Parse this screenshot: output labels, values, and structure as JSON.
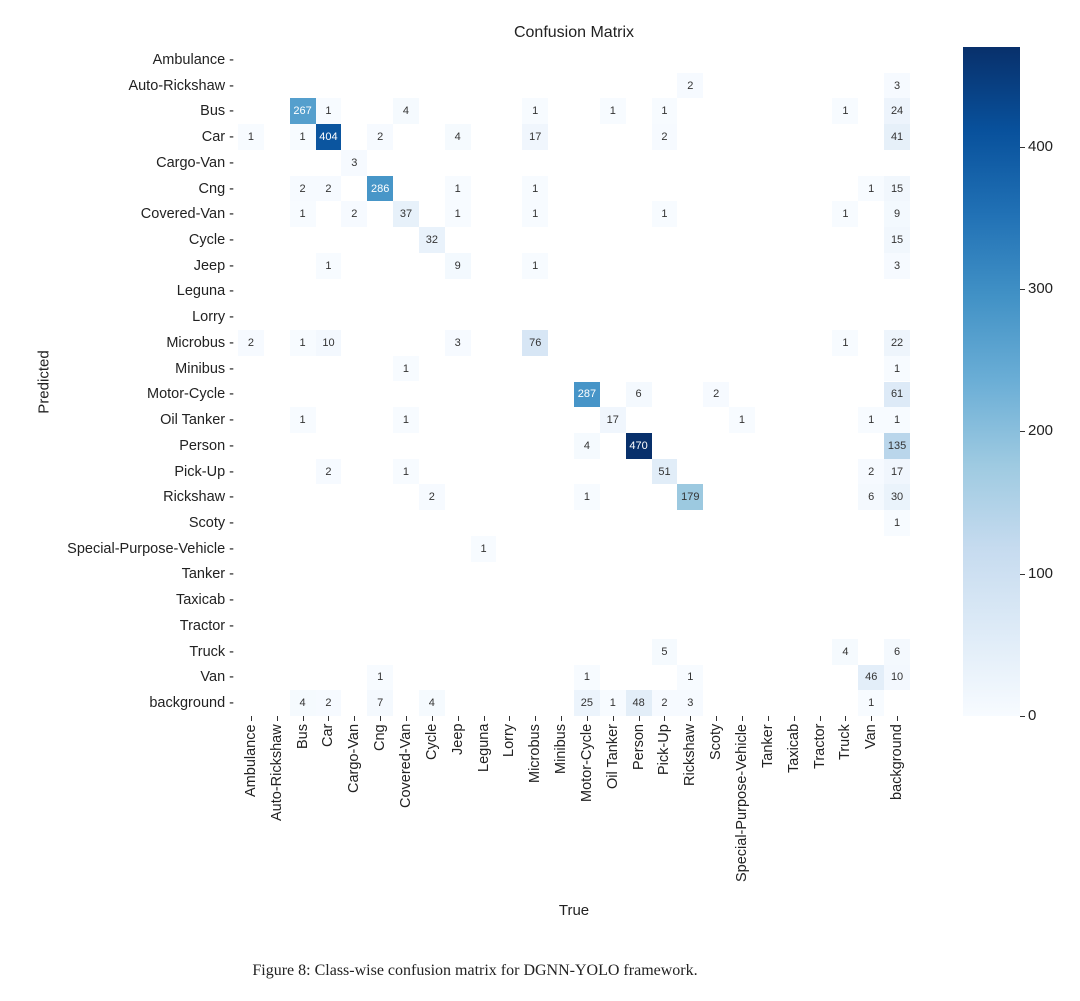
{
  "chart_data": {
    "type": "heatmap",
    "title": "Confusion Matrix",
    "xlabel": "True",
    "ylabel": "Predicted",
    "classes": [
      "Ambulance",
      "Auto-Rickshaw",
      "Bus",
      "Car",
      "Cargo-Van",
      "Cng",
      "Covered-Van",
      "Cycle",
      "Jeep",
      "Leguna",
      "Lorry",
      "Microbus",
      "Minibus",
      "Motor-Cycle",
      "Oil Tanker",
      "Person",
      "Pick-Up",
      "Rickshaw",
      "Scoty",
      "Special-Purpose-Vehicle",
      "Tanker",
      "Taxicab",
      "Tractor",
      "Truck",
      "Van",
      "background"
    ],
    "matrix": [
      [
        0,
        0,
        0,
        0,
        0,
        0,
        0,
        0,
        0,
        0,
        0,
        0,
        0,
        0,
        0,
        0,
        0,
        0,
        0,
        0,
        0,
        0,
        0,
        0,
        0,
        0
      ],
      [
        0,
        0,
        0,
        0,
        0,
        0,
        0,
        0,
        0,
        0,
        0,
        0,
        0,
        0,
        0,
        0,
        0,
        2,
        0,
        0,
        0,
        0,
        0,
        0,
        0,
        3
      ],
      [
        0,
        0,
        267,
        1,
        0,
        0,
        4,
        0,
        0,
        0,
        0,
        1,
        0,
        0,
        1,
        0,
        1,
        0,
        0,
        0,
        0,
        0,
        0,
        1,
        0,
        24
      ],
      [
        1,
        0,
        1,
        404,
        0,
        2,
        0,
        0,
        4,
        0,
        0,
        17,
        0,
        0,
        0,
        0,
        2,
        0,
        0,
        0,
        0,
        0,
        0,
        0,
        0,
        41
      ],
      [
        0,
        0,
        0,
        0,
        3,
        0,
        0,
        0,
        0,
        0,
        0,
        0,
        0,
        0,
        0,
        0,
        0,
        0,
        0,
        0,
        0,
        0,
        0,
        0,
        0,
        0
      ],
      [
        0,
        0,
        2,
        2,
        0,
        286,
        0,
        0,
        1,
        0,
        0,
        1,
        0,
        0,
        0,
        0,
        0,
        0,
        0,
        0,
        0,
        0,
        0,
        0,
        1,
        15
      ],
      [
        0,
        0,
        1,
        0,
        2,
        0,
        37,
        0,
        1,
        0,
        0,
        1,
        0,
        0,
        0,
        0,
        1,
        0,
        0,
        0,
        0,
        0,
        0,
        1,
        0,
        9
      ],
      [
        0,
        0,
        0,
        0,
        0,
        0,
        0,
        32,
        0,
        0,
        0,
        0,
        0,
        0,
        0,
        0,
        0,
        0,
        0,
        0,
        0,
        0,
        0,
        0,
        0,
        15
      ],
      [
        0,
        0,
        0,
        1,
        0,
        0,
        0,
        0,
        9,
        0,
        0,
        1,
        0,
        0,
        0,
        0,
        0,
        0,
        0,
        0,
        0,
        0,
        0,
        0,
        0,
        3
      ],
      [
        0,
        0,
        0,
        0,
        0,
        0,
        0,
        0,
        0,
        0,
        0,
        0,
        0,
        0,
        0,
        0,
        0,
        0,
        0,
        0,
        0,
        0,
        0,
        0,
        0,
        0
      ],
      [
        0,
        0,
        0,
        0,
        0,
        0,
        0,
        0,
        0,
        0,
        0,
        0,
        0,
        0,
        0,
        0,
        0,
        0,
        0,
        0,
        0,
        0,
        0,
        0,
        0,
        0
      ],
      [
        2,
        0,
        1,
        10,
        0,
        0,
        0,
        0,
        3,
        0,
        0,
        76,
        0,
        0,
        0,
        0,
        0,
        0,
        0,
        0,
        0,
        0,
        0,
        1,
        0,
        22
      ],
      [
        0,
        0,
        0,
        0,
        0,
        0,
        1,
        0,
        0,
        0,
        0,
        0,
        0,
        0,
        0,
        0,
        0,
        0,
        0,
        0,
        0,
        0,
        0,
        0,
        0,
        1
      ],
      [
        0,
        0,
        0,
        0,
        0,
        0,
        0,
        0,
        0,
        0,
        0,
        0,
        0,
        287,
        0,
        6,
        0,
        0,
        2,
        0,
        0,
        0,
        0,
        0,
        0,
        61
      ],
      [
        0,
        0,
        1,
        0,
        0,
        0,
        1,
        0,
        0,
        0,
        0,
        0,
        0,
        0,
        17,
        0,
        0,
        0,
        0,
        1,
        0,
        0,
        0,
        0,
        1,
        1
      ],
      [
        0,
        0,
        0,
        0,
        0,
        0,
        0,
        0,
        0,
        0,
        0,
        0,
        0,
        4,
        0,
        470,
        0,
        0,
        0,
        0,
        0,
        0,
        0,
        0,
        0,
        135
      ],
      [
        0,
        0,
        0,
        2,
        0,
        0,
        1,
        0,
        0,
        0,
        0,
        0,
        0,
        0,
        0,
        0,
        51,
        0,
        0,
        0,
        0,
        0,
        0,
        0,
        2,
        17
      ],
      [
        0,
        0,
        0,
        0,
        0,
        0,
        0,
        2,
        0,
        0,
        0,
        0,
        0,
        1,
        0,
        0,
        0,
        179,
        0,
        0,
        0,
        0,
        0,
        0,
        6,
        30
      ],
      [
        0,
        0,
        0,
        0,
        0,
        0,
        0,
        0,
        0,
        0,
        0,
        0,
        0,
        0,
        0,
        0,
        0,
        0,
        0,
        0,
        0,
        0,
        0,
        0,
        0,
        1
      ],
      [
        0,
        0,
        0,
        0,
        0,
        0,
        0,
        0,
        0,
        1,
        0,
        0,
        0,
        0,
        0,
        0,
        0,
        0,
        0,
        0,
        0,
        0,
        0,
        0,
        0,
        0
      ],
      [
        0,
        0,
        0,
        0,
        0,
        0,
        0,
        0,
        0,
        0,
        0,
        0,
        0,
        0,
        0,
        0,
        0,
        0,
        0,
        0,
        0,
        0,
        0,
        0,
        0,
        0
      ],
      [
        0,
        0,
        0,
        0,
        0,
        0,
        0,
        0,
        0,
        0,
        0,
        0,
        0,
        0,
        0,
        0,
        0,
        0,
        0,
        0,
        0,
        0,
        0,
        0,
        0,
        0
      ],
      [
        0,
        0,
        0,
        0,
        0,
        0,
        0,
        0,
        0,
        0,
        0,
        0,
        0,
        0,
        0,
        0,
        0,
        0,
        0,
        0,
        0,
        0,
        0,
        0,
        0,
        0
      ],
      [
        0,
        0,
        0,
        0,
        0,
        0,
        0,
        0,
        0,
        0,
        0,
        0,
        0,
        0,
        0,
        0,
        5,
        0,
        0,
        0,
        0,
        0,
        0,
        4,
        0,
        6
      ],
      [
        0,
        0,
        0,
        0,
        0,
        1,
        0,
        0,
        0,
        0,
        0,
        0,
        0,
        1,
        0,
        0,
        0,
        1,
        0,
        0,
        0,
        0,
        0,
        0,
        46,
        10
      ],
      [
        0,
        0,
        4,
        2,
        0,
        7,
        0,
        4,
        0,
        0,
        0,
        0,
        0,
        25,
        1,
        48,
        2,
        3,
        0,
        0,
        0,
        0,
        0,
        0,
        1,
        0
      ]
    ],
    "colorbar": {
      "range": [
        0,
        470
      ],
      "ticks": [
        0,
        100,
        200,
        300,
        400
      ],
      "colormap": "Blues"
    },
    "grid": false
  },
  "caption": "Figure 8: Class-wise confusion matrix for DGNN-YOLO framework."
}
